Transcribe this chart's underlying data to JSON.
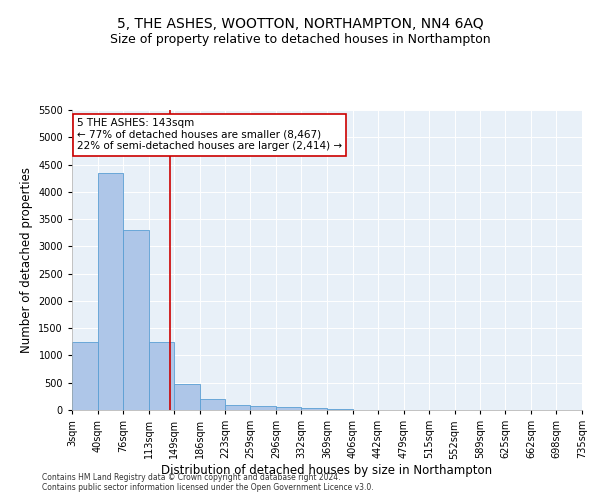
{
  "title": "5, THE ASHES, WOOTTON, NORTHAMPTON, NN4 6AQ",
  "subtitle": "Size of property relative to detached houses in Northampton",
  "xlabel": "Distribution of detached houses by size in Northampton",
  "ylabel": "Number of detached properties",
  "bin_edges": [
    3,
    40,
    76,
    113,
    149,
    186,
    223,
    259,
    296,
    332,
    369,
    406,
    442,
    479,
    515,
    552,
    589,
    625,
    662,
    698,
    735
  ],
  "bin_labels": [
    "3sqm",
    "40sqm",
    "76sqm",
    "113sqm",
    "149sqm",
    "186sqm",
    "223sqm",
    "259sqm",
    "296sqm",
    "332sqm",
    "369sqm",
    "406sqm",
    "442sqm",
    "479sqm",
    "515sqm",
    "552sqm",
    "589sqm",
    "625sqm",
    "662sqm",
    "698sqm",
    "735sqm"
  ],
  "bar_heights": [
    1250,
    4350,
    3300,
    1250,
    480,
    200,
    90,
    70,
    55,
    30,
    10,
    5,
    5,
    0,
    0,
    0,
    0,
    0,
    0,
    0
  ],
  "bar_color": "#aec6e8",
  "bar_edge_color": "#5a9fd4",
  "property_size": 143,
  "property_line_color": "#cc0000",
  "ylim": [
    0,
    5500
  ],
  "yticks": [
    0,
    500,
    1000,
    1500,
    2000,
    2500,
    3000,
    3500,
    4000,
    4500,
    5000,
    5500
  ],
  "annotation_text": "5 THE ASHES: 143sqm\n← 77% of detached houses are smaller (8,467)\n22% of semi-detached houses are larger (2,414) →",
  "annotation_box_color": "#ffffff",
  "annotation_box_edge": "#cc0000",
  "footer_line1": "Contains HM Land Registry data © Crown copyright and database right 2024.",
  "footer_line2": "Contains public sector information licensed under the Open Government Licence v3.0.",
  "plot_bg_color": "#e8f0f8",
  "fig_bg_color": "#ffffff",
  "title_fontsize": 10,
  "subtitle_fontsize": 9,
  "tick_fontsize": 7,
  "ylabel_fontsize": 8.5,
  "xlabel_fontsize": 8.5,
  "footer_fontsize": 5.5,
  "annotation_fontsize": 7.5
}
